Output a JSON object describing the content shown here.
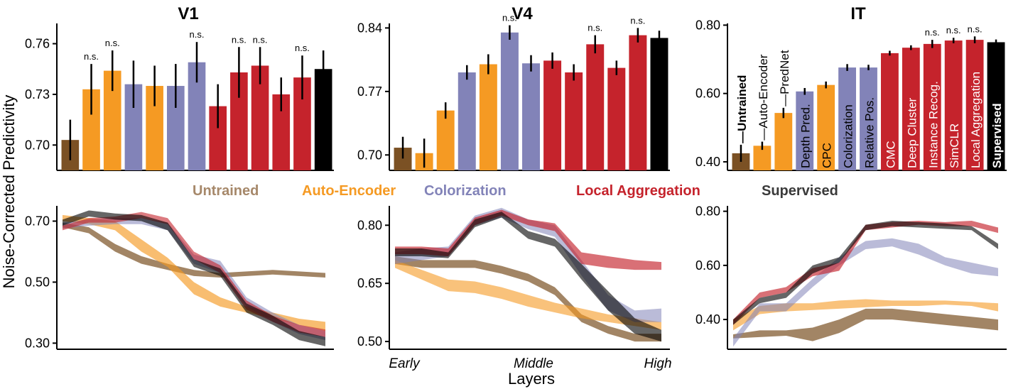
{
  "figure": {
    "ylabel": "Noise-Corrected Predictivity",
    "colors": {
      "Untrained": "#7b5124",
      "AutoEncoder": "#f59a23",
      "Contrastive": "#8283b8",
      "Aggregation": "#c5232c",
      "Supervised": "#000000",
      "legend_untrained": "#a6886a",
      "legend_supervised": "#3a3a3a"
    },
    "legend": {
      "untrained": "Untrained",
      "autoencoder": "Auto-Encoder",
      "colorization": "Colorization",
      "aggregation": "Local Aggregation",
      "supervised": "Supervised"
    },
    "bottom_x": {
      "early": "Early",
      "middle": "Middle",
      "high": "High",
      "label": "Layers"
    }
  },
  "chart_data": [
    {
      "type": "bar",
      "title": "V1",
      "ylim": [
        0.685,
        0.772
      ],
      "yticks": [
        0.7,
        0.73,
        0.76
      ],
      "bars": [
        {
          "group": "Untrained",
          "value": 0.703,
          "err": 0.012,
          "sig": ""
        },
        {
          "group": "AutoEncoder",
          "value": 0.733,
          "err": 0.015,
          "sig": "n.s."
        },
        {
          "group": "AutoEncoder",
          "value": 0.744,
          "err": 0.012,
          "sig": "n.s."
        },
        {
          "group": "Contrastive",
          "value": 0.736,
          "err": 0.014,
          "sig": ""
        },
        {
          "group": "AutoEncoder",
          "value": 0.735,
          "err": 0.012,
          "sig": ""
        },
        {
          "group": "Contrastive",
          "value": 0.735,
          "err": 0.013,
          "sig": ""
        },
        {
          "group": "Contrastive",
          "value": 0.749,
          "err": 0.012,
          "sig": "n.s."
        },
        {
          "group": "Aggregation",
          "value": 0.723,
          "err": 0.013,
          "sig": ""
        },
        {
          "group": "Aggregation",
          "value": 0.743,
          "err": 0.015,
          "sig": "n.s."
        },
        {
          "group": "Aggregation",
          "value": 0.747,
          "err": 0.011,
          "sig": "n.s."
        },
        {
          "group": "Aggregation",
          "value": 0.73,
          "err": 0.01,
          "sig": ""
        },
        {
          "group": "Aggregation",
          "value": 0.74,
          "err": 0.013,
          "sig": "n.s."
        },
        {
          "group": "Supervised",
          "value": 0.745,
          "err": 0.011,
          "sig": ""
        }
      ]
    },
    {
      "type": "bar",
      "title": "V4",
      "ylim": [
        0.683,
        0.845
      ],
      "yticks": [
        0.7,
        0.77,
        0.84
      ],
      "bars": [
        {
          "group": "Untrained",
          "value": 0.708,
          "err": 0.012,
          "sig": ""
        },
        {
          "group": "AutoEncoder",
          "value": 0.702,
          "err": 0.016,
          "sig": ""
        },
        {
          "group": "AutoEncoder",
          "value": 0.749,
          "err": 0.009,
          "sig": ""
        },
        {
          "group": "Contrastive",
          "value": 0.791,
          "err": 0.008,
          "sig": ""
        },
        {
          "group": "AutoEncoder",
          "value": 0.8,
          "err": 0.011,
          "sig": ""
        },
        {
          "group": "Contrastive",
          "value": 0.835,
          "err": 0.008,
          "sig": "n.s."
        },
        {
          "group": "Contrastive",
          "value": 0.801,
          "err": 0.009,
          "sig": ""
        },
        {
          "group": "Aggregation",
          "value": 0.804,
          "err": 0.009,
          "sig": ""
        },
        {
          "group": "Aggregation",
          "value": 0.791,
          "err": 0.009,
          "sig": ""
        },
        {
          "group": "Aggregation",
          "value": 0.822,
          "err": 0.01,
          "sig": "n.s."
        },
        {
          "group": "Aggregation",
          "value": 0.796,
          "err": 0.008,
          "sig": ""
        },
        {
          "group": "Aggregation",
          "value": 0.832,
          "err": 0.008,
          "sig": "n.s."
        },
        {
          "group": "Supervised",
          "value": 0.829,
          "err": 0.008,
          "sig": ""
        }
      ]
    },
    {
      "type": "bar",
      "title": "IT",
      "ylim": [
        0.375,
        0.805
      ],
      "yticks": [
        0.4,
        0.6,
        0.8
      ],
      "bars": [
        {
          "group": "Untrained",
          "value": 0.425,
          "err": 0.025,
          "sig": "",
          "label": "Untrained",
          "label_color": "#000000",
          "bold": true
        },
        {
          "group": "AutoEncoder",
          "value": 0.447,
          "err": 0.012,
          "sig": "",
          "label": "Auto-Encoder",
          "label_color": "#000000",
          "bold": false
        },
        {
          "group": "AutoEncoder",
          "value": 0.543,
          "err": 0.015,
          "sig": "",
          "label": "PredNet",
          "label_color": "#000000",
          "bold": false
        },
        {
          "group": "Contrastive",
          "value": 0.606,
          "err": 0.01,
          "sig": "",
          "label": "Depth Pred.",
          "label_color": "#000000",
          "bold": false
        },
        {
          "group": "AutoEncoder",
          "value": 0.625,
          "err": 0.01,
          "sig": "",
          "label": "CPC",
          "label_color": "#000000",
          "bold": false
        },
        {
          "group": "Contrastive",
          "value": 0.676,
          "err": 0.01,
          "sig": "",
          "label": "Colorization",
          "label_color": "#000000",
          "bold": false
        },
        {
          "group": "Contrastive",
          "value": 0.676,
          "err": 0.008,
          "sig": "",
          "label": "Relative Pos.",
          "label_color": "#000000",
          "bold": false
        },
        {
          "group": "Aggregation",
          "value": 0.718,
          "err": 0.007,
          "sig": "",
          "label": "CMC",
          "label_color": "#ffffff",
          "bold": false
        },
        {
          "group": "Aggregation",
          "value": 0.734,
          "err": 0.007,
          "sig": "",
          "label": "Deep Cluster",
          "label_color": "#ffffff",
          "bold": false
        },
        {
          "group": "Aggregation",
          "value": 0.745,
          "err": 0.012,
          "sig": "n.s.",
          "label": "Instance Recog.",
          "label_color": "#ffffff",
          "bold": false
        },
        {
          "group": "Aggregation",
          "value": 0.755,
          "err": 0.008,
          "sig": "n.s.",
          "label": "SimCLR",
          "label_color": "#ffffff",
          "bold": false
        },
        {
          "group": "Aggregation",
          "value": 0.757,
          "err": 0.01,
          "sig": "n.s.",
          "label": "Local Aggregation",
          "label_color": "#ffffff",
          "bold": false
        },
        {
          "group": "Supervised",
          "value": 0.75,
          "err": 0.008,
          "sig": "",
          "label": "Supervised",
          "label_color": "#ffffff",
          "bold": true
        }
      ]
    },
    {
      "type": "area",
      "title": "",
      "xlim": [
        0,
        10
      ],
      "ylim": [
        0.28,
        0.75
      ],
      "yticks": [
        0.3,
        0.5,
        0.7
      ],
      "series": [
        {
          "group": "Untrained",
          "opacity": 0.7,
          "lower": [
            0.68,
            0.66,
            0.6,
            0.56,
            0.54,
            0.52,
            0.515,
            0.52,
            0.525,
            0.52,
            0.515
          ],
          "upper": [
            0.695,
            0.68,
            0.625,
            0.585,
            0.56,
            0.54,
            0.53,
            0.535,
            0.54,
            0.535,
            0.53
          ]
        },
        {
          "group": "AutoEncoder",
          "opacity": 0.65,
          "lower": [
            0.7,
            0.69,
            0.67,
            0.6,
            0.55,
            0.46,
            0.42,
            0.4,
            0.38,
            0.36,
            0.34
          ],
          "upper": [
            0.72,
            0.71,
            0.7,
            0.64,
            0.58,
            0.5,
            0.45,
            0.42,
            0.4,
            0.38,
            0.37
          ]
        },
        {
          "group": "Contrastive",
          "opacity": 0.55,
          "lower": [
            0.675,
            0.685,
            0.69,
            0.69,
            0.67,
            0.56,
            0.53,
            0.42,
            0.37,
            0.33,
            0.31
          ],
          "upper": [
            0.695,
            0.705,
            0.71,
            0.71,
            0.695,
            0.59,
            0.57,
            0.45,
            0.4,
            0.36,
            0.34
          ]
        },
        {
          "group": "Aggregation",
          "opacity": 0.6,
          "lower": [
            0.67,
            0.695,
            0.695,
            0.71,
            0.69,
            0.575,
            0.53,
            0.41,
            0.37,
            0.335,
            0.32
          ],
          "upper": [
            0.685,
            0.71,
            0.715,
            0.73,
            0.71,
            0.6,
            0.555,
            0.44,
            0.39,
            0.36,
            0.345
          ]
        },
        {
          "group": "Supervised",
          "opacity": 0.6,
          "lower": [
            0.685,
            0.715,
            0.705,
            0.7,
            0.67,
            0.55,
            0.52,
            0.4,
            0.36,
            0.31,
            0.29
          ],
          "upper": [
            0.705,
            0.735,
            0.725,
            0.72,
            0.695,
            0.575,
            0.545,
            0.43,
            0.39,
            0.34,
            0.32
          ]
        }
      ]
    },
    {
      "type": "area",
      "title": "",
      "xlim": [
        0,
        10
      ],
      "ylim": [
        0.48,
        0.85
      ],
      "yticks": [
        0.5,
        0.65,
        0.8
      ],
      "series": [
        {
          "group": "Untrained",
          "opacity": 0.7,
          "lower": [
            0.7,
            0.69,
            0.69,
            0.69,
            0.675,
            0.655,
            0.62,
            0.55,
            0.52,
            0.5,
            0.5
          ],
          "upper": [
            0.72,
            0.71,
            0.71,
            0.71,
            0.695,
            0.675,
            0.64,
            0.57,
            0.54,
            0.52,
            0.52
          ]
        },
        {
          "group": "AutoEncoder",
          "opacity": 0.6,
          "lower": [
            0.69,
            0.66,
            0.63,
            0.625,
            0.61,
            0.59,
            0.575,
            0.56,
            0.55,
            0.54,
            0.53
          ],
          "upper": [
            0.71,
            0.685,
            0.66,
            0.655,
            0.64,
            0.62,
            0.6,
            0.585,
            0.57,
            0.56,
            0.55
          ]
        },
        {
          "group": "Contrastive",
          "opacity": 0.55,
          "lower": [
            0.7,
            0.71,
            0.72,
            0.8,
            0.82,
            0.79,
            0.77,
            0.67,
            0.58,
            0.55,
            0.55
          ],
          "upper": [
            0.73,
            0.74,
            0.745,
            0.825,
            0.845,
            0.815,
            0.8,
            0.71,
            0.62,
            0.58,
            0.585
          ]
        },
        {
          "group": "Aggregation",
          "opacity": 0.65,
          "lower": [
            0.725,
            0.725,
            0.72,
            0.8,
            0.825,
            0.8,
            0.785,
            0.7,
            0.69,
            0.685,
            0.685
          ],
          "upper": [
            0.745,
            0.745,
            0.74,
            0.82,
            0.84,
            0.815,
            0.805,
            0.73,
            0.72,
            0.71,
            0.705
          ]
        },
        {
          "group": "Supervised",
          "opacity": 0.6,
          "lower": [
            0.72,
            0.72,
            0.715,
            0.795,
            0.82,
            0.765,
            0.745,
            0.66,
            0.58,
            0.52,
            0.5
          ],
          "upper": [
            0.74,
            0.74,
            0.73,
            0.815,
            0.835,
            0.785,
            0.765,
            0.7,
            0.63,
            0.56,
            0.53
          ]
        }
      ]
    },
    {
      "type": "area",
      "title": "",
      "xlim": [
        0,
        10
      ],
      "ylim": [
        0.29,
        0.82
      ],
      "yticks": [
        0.4,
        0.6,
        0.8
      ],
      "series": [
        {
          "group": "Untrained",
          "opacity": 0.7,
          "lower": [
            0.33,
            0.335,
            0.34,
            0.32,
            0.35,
            0.4,
            0.4,
            0.39,
            0.38,
            0.37,
            0.36
          ],
          "upper": [
            0.345,
            0.36,
            0.36,
            0.37,
            0.4,
            0.44,
            0.44,
            0.43,
            0.42,
            0.41,
            0.4
          ]
        },
        {
          "group": "AutoEncoder",
          "opacity": 0.6,
          "lower": [
            0.36,
            0.42,
            0.43,
            0.435,
            0.44,
            0.445,
            0.45,
            0.45,
            0.455,
            0.45,
            0.43
          ],
          "upper": [
            0.4,
            0.45,
            0.46,
            0.46,
            0.47,
            0.475,
            0.47,
            0.47,
            0.47,
            0.465,
            0.46
          ]
        },
        {
          "group": "Contrastive",
          "opacity": 0.55,
          "lower": [
            0.3,
            0.43,
            0.43,
            0.52,
            0.6,
            0.66,
            0.67,
            0.64,
            0.6,
            0.57,
            0.56
          ],
          "upper": [
            0.33,
            0.46,
            0.46,
            0.55,
            0.63,
            0.69,
            0.7,
            0.68,
            0.63,
            0.61,
            0.59
          ]
        },
        {
          "group": "Aggregation",
          "opacity": 0.65,
          "lower": [
            0.38,
            0.48,
            0.5,
            0.56,
            0.58,
            0.73,
            0.74,
            0.75,
            0.745,
            0.745,
            0.72
          ],
          "upper": [
            0.4,
            0.5,
            0.52,
            0.59,
            0.61,
            0.75,
            0.76,
            0.765,
            0.76,
            0.765,
            0.74
          ]
        },
        {
          "group": "Supervised",
          "opacity": 0.6,
          "lower": [
            0.38,
            0.46,
            0.48,
            0.57,
            0.61,
            0.73,
            0.745,
            0.74,
            0.735,
            0.73,
            0.66
          ],
          "upper": [
            0.4,
            0.48,
            0.5,
            0.6,
            0.63,
            0.75,
            0.765,
            0.76,
            0.755,
            0.745,
            0.68
          ]
        }
      ]
    }
  ]
}
